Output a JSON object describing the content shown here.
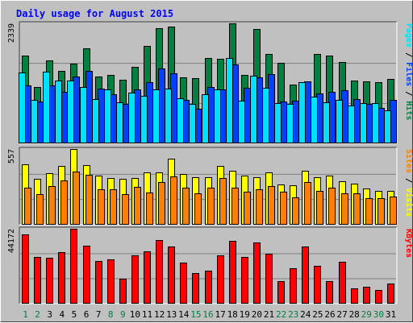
{
  "chart_data": {
    "type": "bar",
    "title": "Daily usage for August 2015",
    "colors": {
      "background": "#c0c0c0",
      "title": "#0000ff",
      "hits": "#008040",
      "files": "#0040ff",
      "pages": "#00e0ff",
      "visits": "#ffff00",
      "sites": "#ff8000",
      "kbytes": "#ff0000",
      "weekday_label": "#000000",
      "weekend_label": "#008040"
    },
    "categories": [
      "1",
      "2",
      "3",
      "4",
      "5",
      "6",
      "7",
      "8",
      "9",
      "10",
      "11",
      "12",
      "13",
      "14",
      "15",
      "16",
      "17",
      "18",
      "19",
      "20",
      "21",
      "22",
      "23",
      "24",
      "25",
      "26",
      "27",
      "28",
      "29",
      "30",
      "31"
    ],
    "weekend_days": [
      "1",
      "2",
      "8",
      "9",
      "15",
      "16",
      "22",
      "23",
      "29",
      "30"
    ],
    "panels": [
      {
        "id": "hits",
        "max_label": "2339",
        "ylim": [
          0,
          2339
        ],
        "legend": [
          {
            "text": "Pages",
            "color": "#00e0ff"
          },
          {
            "text": " / ",
            "color": "#000000"
          },
          {
            "text": "Files",
            "color": "#0040ff"
          },
          {
            "text": " / ",
            "color": "#000000"
          },
          {
            "text": "Hits",
            "color": "#008040"
          }
        ],
        "series": [
          {
            "name": "Hits",
            "color": "#008040",
            "values": [
              1705,
              1096,
              1620,
              1412,
              1548,
              1851,
              1301,
              1328,
              1242,
              1484,
              1905,
              2250,
              2282,
              1294,
              1270,
              1669,
              1647,
              2339,
              1334,
              2230,
              1738,
              1567,
              1152,
              1143,
              1735,
              1714,
              1592,
              1221,
              1208,
              1192,
              1260
            ]
          },
          {
            "name": "Files",
            "color": "#0040ff",
            "values": [
              1136,
              811,
              1136,
              1000,
              1300,
              1420,
              1066,
              960,
              770,
              1052,
              1200,
              1463,
              1370,
              844,
              682,
              1094,
              1049,
              1543,
              1082,
              1289,
              1352,
              822,
              830,
              1212,
              969,
              1007,
              1035,
              865,
              765,
              683,
              840
            ]
          },
          {
            "name": "Pages",
            "color": "#00e0ff",
            "values": [
              1377,
              855,
              1393,
              1232,
              1226,
              1102,
              857,
              1050,
              806,
              983,
              925,
              1055,
              1074,
              876,
              766,
              960,
              1055,
              1663,
              838,
              1326,
              1090,
              780,
              763,
              1188,
              906,
              808,
              846,
              730,
              780,
              785,
              645
            ]
          }
        ]
      },
      {
        "id": "visits",
        "max_label": "557",
        "ylim": [
          0,
          557
        ],
        "legend": [
          {
            "text": "Sites",
            "color": "#ff8000"
          },
          {
            "text": " / ",
            "color": "#000000"
          },
          {
            "text": "Visits",
            "color": "#ffff00"
          }
        ],
        "series": [
          {
            "name": "Visits",
            "color": "#ffff00",
            "values": [
              444,
              336,
              380,
              432,
              557,
              436,
              359,
              342,
              338,
              346,
              385,
              387,
              488,
              376,
              348,
              347,
              430,
              395,
              362,
              348,
              388,
              296,
              288,
              397,
              349,
              359,
              321,
              304,
              264,
              248,
              247
            ]
          },
          {
            "name": "Sites",
            "color": "#ff8000",
            "values": [
              275,
              227,
              286,
              327,
              390,
              368,
              258,
              261,
              226,
              278,
              238,
              317,
              353,
              274,
              233,
              271,
              342,
              274,
              242,
              261,
              285,
              242,
              200,
              312,
              251,
              274,
              230,
              233,
              198,
              194,
              207
            ]
          }
        ]
      },
      {
        "id": "kbytes",
        "max_label": "44172",
        "ylim": [
          0,
          44172
        ],
        "legend": [
          {
            "text": "KBytes",
            "color": "#ff0000"
          }
        ],
        "series": [
          {
            "name": "KBytes",
            "color": "#ff0000",
            "values": [
              40860,
              27640,
              26920,
              30630,
              44172,
              33980,
              25320,
              25960,
              14640,
              28360,
              30870,
              37740,
              33850,
              24200,
              17900,
              19550,
              28450,
              37050,
              27360,
              36020,
              29300,
              13130,
              20850,
              33950,
              22200,
              13210,
              24860,
              8800,
              9880,
              8100,
              11650
            ]
          }
        ]
      }
    ]
  }
}
